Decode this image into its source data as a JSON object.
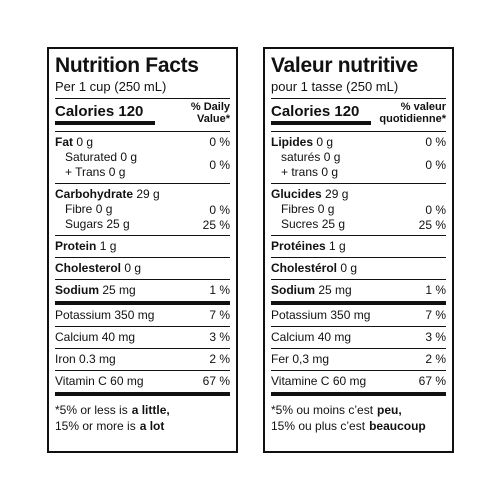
{
  "panels": [
    {
      "title": "Nutrition Facts",
      "serving": "Per 1 cup (250 mL)",
      "calories": "Calories 120",
      "dv_header": [
        "% Daily",
        "Value*"
      ],
      "blocks": [
        [
          {
            "name": "Fat",
            "amount": "0 g",
            "dv": "0 %",
            "subs": [
              {
                "lines": [
                  {
                    "name": "Saturated",
                    "amount": "0 g"
                  },
                  {
                    "name": "+ Trans",
                    "amount": "0 g"
                  }
                ],
                "dv": "0 %"
              }
            ]
          },
          {
            "name": "Carbohydrate",
            "amount": "29 g",
            "subs": [
              {
                "lines": [
                  {
                    "name": "Fibre",
                    "amount": "0 g"
                  }
                ],
                "dv": "0 %"
              },
              {
                "lines": [
                  {
                    "name": "Sugars",
                    "amount": "25 g"
                  }
                ],
                "dv": "25 %"
              }
            ]
          },
          {
            "name": "Protein",
            "amount": "1 g"
          },
          {
            "name": "Cholesterol",
            "amount": "0 g"
          },
          {
            "name": "Sodium",
            "amount": "25 mg",
            "dv": "1 %"
          }
        ],
        [
          {
            "name": "Potassium",
            "amount": "350 mg",
            "dv": "7 %"
          },
          {
            "name": "Calcium",
            "amount": "40 mg",
            "dv": "3 %"
          },
          {
            "name": "Iron",
            "amount": "0.3 mg",
            "dv": "2 %"
          },
          {
            "name": "Vitamin C",
            "amount": "60 mg",
            "dv": "67 %"
          }
        ]
      ],
      "footnote": [
        {
          "text": "*5% or less is",
          "bold": "a little,"
        },
        {
          "text": "15% or more is",
          "bold": "a lot"
        }
      ]
    },
    {
      "title": "Valeur nutritive",
      "serving": "pour 1 tasse (250 mL)",
      "calories": "Calories 120",
      "dv_header": [
        "% valeur",
        "quotidienne*"
      ],
      "blocks": [
        [
          {
            "name": "Lipides",
            "amount": "0 g",
            "dv": "0 %",
            "subs": [
              {
                "lines": [
                  {
                    "name": "saturés",
                    "amount": "0 g"
                  },
                  {
                    "name": "+ trans",
                    "amount": "0 g"
                  }
                ],
                "dv": "0 %"
              }
            ]
          },
          {
            "name": "Glucides",
            "amount": "29 g",
            "subs": [
              {
                "lines": [
                  {
                    "name": "Fibres",
                    "amount": "0 g"
                  }
                ],
                "dv": "0 %"
              },
              {
                "lines": [
                  {
                    "name": "Sucres",
                    "amount": "25 g"
                  }
                ],
                "dv": "25 %"
              }
            ]
          },
          {
            "name": "Protéines",
            "amount": "1 g"
          },
          {
            "name": "Cholestérol",
            "amount": "0 g"
          },
          {
            "name": "Sodium",
            "amount": "25 mg",
            "dv": "1 %"
          }
        ],
        [
          {
            "name": "Potassium",
            "amount": "350 mg",
            "dv": "7 %"
          },
          {
            "name": "Calcium",
            "amount": "40 mg",
            "dv": "3 %"
          },
          {
            "name": "Fer",
            "amount": "0,3 mg",
            "dv": "2 %"
          },
          {
            "name": "Vitamine C",
            "amount": "60 mg",
            "dv": "67 %"
          }
        ]
      ],
      "footnote": [
        {
          "text": "*5% ou moins c’est",
          "bold": "peu,"
        },
        {
          "text": "15% ou plus c’est",
          "bold": "beaucoup"
        }
      ]
    }
  ]
}
